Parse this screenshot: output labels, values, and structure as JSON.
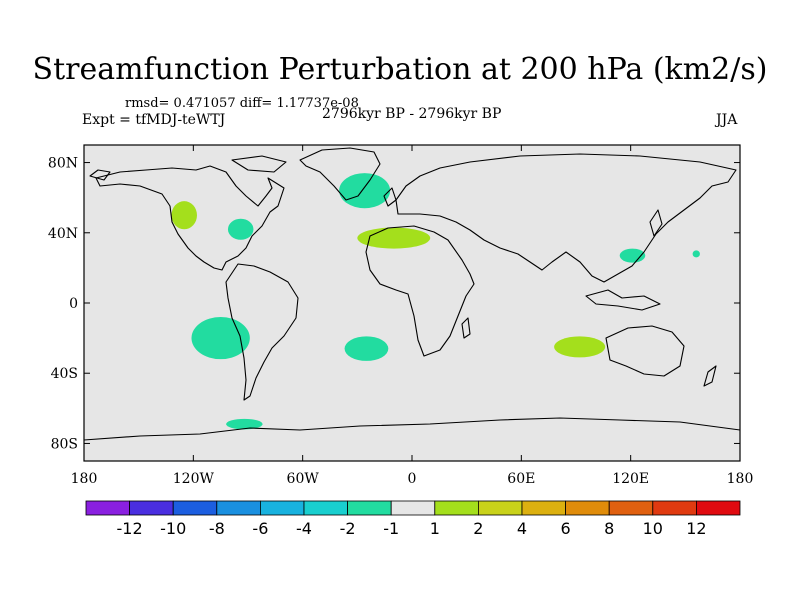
{
  "title": "Streamfunction Perturbation at 200 hPa (km2/s)",
  "stats_text": "rmsd= 0.471057 diff= 1.17737e-08",
  "experiment_text": "Expt = tfMDJ-teWTJ",
  "period_text": "2796kyr BP - 2796kyr BP",
  "season_text": "JJA",
  "chart_data": {
    "type": "map-contour",
    "projection": "cylindrical-equidistant",
    "xlim": [
      -180,
      180
    ],
    "ylim": [
      -90,
      90
    ],
    "x_ticks": [
      {
        "value": -180,
        "label": "180"
      },
      {
        "value": -120,
        "label": "120W"
      },
      {
        "value": -60,
        "label": "60W"
      },
      {
        "value": 0,
        "label": "0"
      },
      {
        "value": 60,
        "label": "60E"
      },
      {
        "value": 120,
        "label": "120E"
      },
      {
        "value": 180,
        "label": "180"
      }
    ],
    "y_ticks": [
      {
        "value": 80,
        "label": "80N"
      },
      {
        "value": 40,
        "label": "40N"
      },
      {
        "value": 0,
        "label": "0"
      },
      {
        "value": -40,
        "label": "40S"
      },
      {
        "value": -80,
        "label": "80S"
      }
    ],
    "colorbar": {
      "boundaries": [
        "-12",
        "-10",
        "-8",
        "-6",
        "-4",
        "-2",
        "-1",
        "1",
        "2",
        "4",
        "6",
        "8",
        "10",
        "12"
      ],
      "colors": [
        "#8a20e0",
        "#4a2ee0",
        "#1c5ee0",
        "#1a90e0",
        "#18b2df",
        "#19cfcf",
        "#22dca0",
        "#e6e6e6",
        "#a4df1c",
        "#c9d21a",
        "#dcb010",
        "#e08c0a",
        "#e06010",
        "#e03a10",
        "#e00a10"
      ]
    },
    "anomalies": [
      {
        "name": "western-north-america",
        "lon": -125,
        "lat": 50,
        "rlon": 7,
        "rlat": 8,
        "color": "#a4df1c"
      },
      {
        "name": "great-lakes",
        "lon": -94,
        "lat": 42,
        "rlon": 7,
        "rlat": 6,
        "color": "#22dca0"
      },
      {
        "name": "greenland",
        "lon": -26,
        "lat": 64,
        "rlon": 14,
        "rlat": 10,
        "color": "#22dca0"
      },
      {
        "name": "mediterranean",
        "lon": -10,
        "lat": 37,
        "rlon": 20,
        "rlat": 6,
        "color": "#a4df1c"
      },
      {
        "name": "east-asia",
        "lon": 121,
        "lat": 27,
        "rlon": 7,
        "rlat": 4,
        "color": "#22dca0"
      },
      {
        "name": "central-pacific-north",
        "lon": 156,
        "lat": 28,
        "rlon": 2,
        "rlat": 2,
        "color": "#22dca0"
      },
      {
        "name": "south-east-pacific",
        "lon": -105,
        "lat": -20,
        "rlon": 16,
        "rlat": 12,
        "color": "#22dca0"
      },
      {
        "name": "south-atlantic",
        "lon": -25,
        "lat": -26,
        "rlon": 12,
        "rlat": 7,
        "color": "#22dca0"
      },
      {
        "name": "indian-ocean",
        "lon": 92,
        "lat": -25,
        "rlon": 14,
        "rlat": 6,
        "color": "#a4df1c"
      },
      {
        "name": "antarctic-coast",
        "lon": -92,
        "lat": -69,
        "rlon": 10,
        "rlat": 3,
        "color": "#22dca0"
      }
    ]
  }
}
